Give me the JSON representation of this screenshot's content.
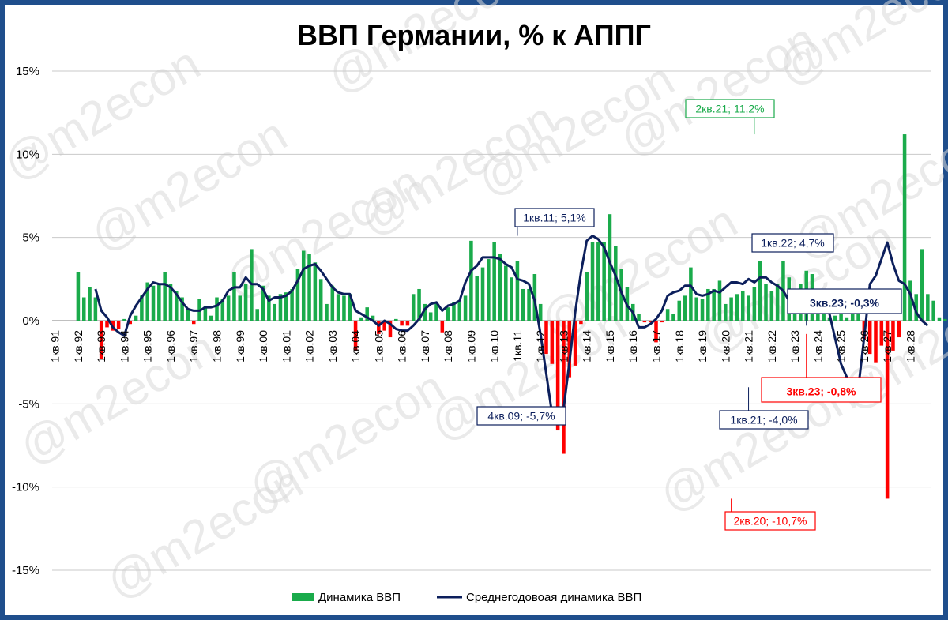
{
  "chart_data": {
    "type": "bar+line",
    "title": "ВВП Германии, % к АППГ",
    "watermark": "@m2econ",
    "xlabel": "",
    "ylabel": "",
    "ylim": [
      -15,
      15
    ],
    "yticks": [
      {
        "value": 15,
        "label": "15%"
      },
      {
        "value": 10,
        "label": "10%"
      },
      {
        "value": 5,
        "label": "5%"
      },
      {
        "value": 0,
        "label": "0%"
      },
      {
        "value": -5,
        "label": "-5%"
      },
      {
        "value": -10,
        "label": "-10%"
      },
      {
        "value": -15,
        "label": "-15%"
      }
    ],
    "x_start": "1кв.91",
    "x_end": "4кв.28",
    "x_tick_labels": [
      "1кв.91",
      "1кв.92",
      "1кв.93",
      "1кв.94",
      "1кв.95",
      "1кв.96",
      "1кв.97",
      "1кв.98",
      "1кв.99",
      "1кв.00",
      "1кв.01",
      "1кв.02",
      "1кв.03",
      "1кв.04",
      "1кв.05",
      "1кв.06",
      "1кв.07",
      "1кв.08",
      "1кв.09",
      "1кв.10",
      "1кв.11",
      "1кв.12",
      "1кв.13",
      "1кв.14",
      "1кв.15",
      "1кв.16",
      "1кв.17",
      "1кв.18",
      "1кв.19",
      "1кв.20",
      "1кв.21",
      "1кв.22",
      "1кв.23",
      "1кв.24",
      "1кв.25",
      "1кв.26",
      "1кв.27",
      "1кв.28"
    ],
    "bar_series": {
      "name": "Динамика ВВП",
      "positive_color": "#1aab4b",
      "negative_color": "#ff0000",
      "start": "1кв.92",
      "values": [
        2.9,
        1.4,
        2.0,
        1.4,
        -2.3,
        -0.4,
        -0.6,
        -0.5,
        0.1,
        -0.2,
        0.3,
        1.5,
        2.3,
        2.1,
        2.2,
        2.9,
        2.2,
        1.8,
        1.4,
        0.7,
        -0.2,
        1.3,
        0.9,
        0.3,
        1.4,
        1.3,
        1.5,
        2.9,
        1.5,
        2.2,
        4.3,
        0.7,
        2.1,
        1.5,
        1.0,
        1.6,
        1.7,
        1.9,
        3.1,
        4.2,
        4.0,
        3.5,
        2.5,
        1.0,
        2.1,
        1.6,
        1.5,
        1.6,
        -1.8,
        0.2,
        0.8,
        0.3,
        -0.8,
        -0.6,
        -1.0,
        0.1,
        -0.3,
        -0.3,
        1.6,
        1.9,
        1.0,
        0.5,
        1.1,
        -0.7,
        0.8,
        1.1,
        1.1,
        1.5,
        4.8,
        2.7,
        3.2,
        3.7,
        4.7,
        4.0,
        3.3,
        2.6,
        3.6,
        1.9,
        1.9,
        2.8,
        1.0,
        -2.0,
        -2.6,
        -6.6,
        -8.0,
        -3.4,
        -2.7,
        -0.2,
        2.9,
        4.7,
        4.7,
        4.7,
        6.4,
        4.5,
        3.1,
        2.0,
        1.0,
        0.4,
        -0.1,
        -0.1,
        -1.3,
        -0.1,
        0.7,
        0.4,
        1.2,
        1.5,
        3.2,
        1.4,
        1.3,
        1.9,
        1.9,
        2.4,
        1.0,
        1.4,
        1.6,
        1.8,
        1.5,
        2.0,
        3.6,
        2.2,
        1.8,
        2.2,
        3.6,
        2.6,
        1.3,
        2.2,
        3.0,
        2.8,
        1.4,
        1.4,
        0.2,
        0.3,
        1.0,
        0.2,
        1.9,
        0.8,
        -1.1,
        -2.0,
        -2.5,
        -1.5,
        -10.7,
        -1.8,
        -1.0,
        11.2,
        2.4,
        1.6,
        4.3,
        1.6,
        1.2,
        0.2,
        0.1,
        -0.8
      ]
    },
    "line_series": {
      "name": "Среднегодовоая динамика ВВП",
      "color": "#0c1f5c",
      "start": "4кв.92",
      "values": [
        1.9,
        0.6,
        0.2,
        -0.4,
        -0.7,
        -0.9,
        0.3,
        0.9,
        1.4,
        1.9,
        2.3,
        2.2,
        2.2,
        2.0,
        1.6,
        1.1,
        0.7,
        0.6,
        0.6,
        0.8,
        0.8,
        0.9,
        1.2,
        1.8,
        2.0,
        2.0,
        2.6,
        2.2,
        2.2,
        1.9,
        1.2,
        1.4,
        1.4,
        1.5,
        1.8,
        2.4,
        3.1,
        3.3,
        3.4,
        3.0,
        2.5,
        2.0,
        1.7,
        1.6,
        1.6,
        0.6,
        0.4,
        0.2,
        0.0,
        -0.3,
        0.0,
        -0.2,
        -0.5,
        -0.6,
        -0.6,
        -0.3,
        0.1,
        0.7,
        1.0,
        1.1,
        0.6,
        0.9,
        1.0,
        1.2,
        2.3,
        3.0,
        3.3,
        3.8,
        3.8,
        3.8,
        3.7,
        3.4,
        3.2,
        2.5,
        2.4,
        2.2,
        1.2,
        -0.8,
        -3.2,
        -5.6,
        -5.7,
        -5.3,
        -2.5,
        0.5,
        2.9,
        4.8,
        5.1,
        4.9,
        4.4,
        3.5,
        2.7,
        1.7,
        0.9,
        0.5,
        -0.4,
        -0.4,
        -0.2,
        0.1,
        0.6,
        1.5,
        1.7,
        1.8,
        2.1,
        2.1,
        1.6,
        1.5,
        1.6,
        1.8,
        1.7,
        2.0,
        2.3,
        2.3,
        2.2,
        2.5,
        2.3,
        2.6,
        2.6,
        2.3,
        2.1,
        1.8,
        1.2,
        0.9,
        0.9,
        0.6,
        0.5,
        0.9,
        1.0,
        0.4,
        -1.1,
        -2.6,
        -3.4,
        -3.8,
        -4.0,
        -1.0,
        2.2,
        2.7,
        3.7,
        4.7,
        3.4,
        2.4,
        2.2,
        1.6,
        0.5,
        0.0,
        -0.3
      ]
    },
    "annotations": [
      {
        "text": "2кв.21; 11,2%",
        "color": "#1aab4b",
        "x_index": 121,
        "y": 11.2
      },
      {
        "text": "1кв.11; 5,1%",
        "color": "#0c1f5c",
        "x_index": 80,
        "y": 5.1
      },
      {
        "text": "1кв.22; 4,7%",
        "color": "#0c1f5c",
        "x_index": 124,
        "y": 4.7
      },
      {
        "text": "3кв.23; -0,3%",
        "color": "#0c1f5c",
        "x_index": 130,
        "y": -0.3
      },
      {
        "text": "3кв.23; -0,8%",
        "color": "#ff0000",
        "x_index": 130,
        "y": -0.8
      },
      {
        "text": "4кв.09; -5,7%",
        "color": "#0c1f5c",
        "x_index": 75,
        "y": -5.7
      },
      {
        "text": "1кв.21; -4,0%",
        "color": "#0c1f5c",
        "x_index": 120,
        "y": -4.0
      },
      {
        "text": "2кв.20; -10,7%",
        "color": "#ff0000",
        "x_index": 117,
        "y": -10.7
      }
    ],
    "legend": {
      "position": "bottom",
      "items": [
        {
          "label": "Динамика ВВП",
          "kind": "bar",
          "color": "#1aab4b"
        },
        {
          "label": "Среднегодовоая динамика ВВП",
          "kind": "line",
          "color": "#0c1f5c"
        }
      ]
    },
    "grid": true
  }
}
